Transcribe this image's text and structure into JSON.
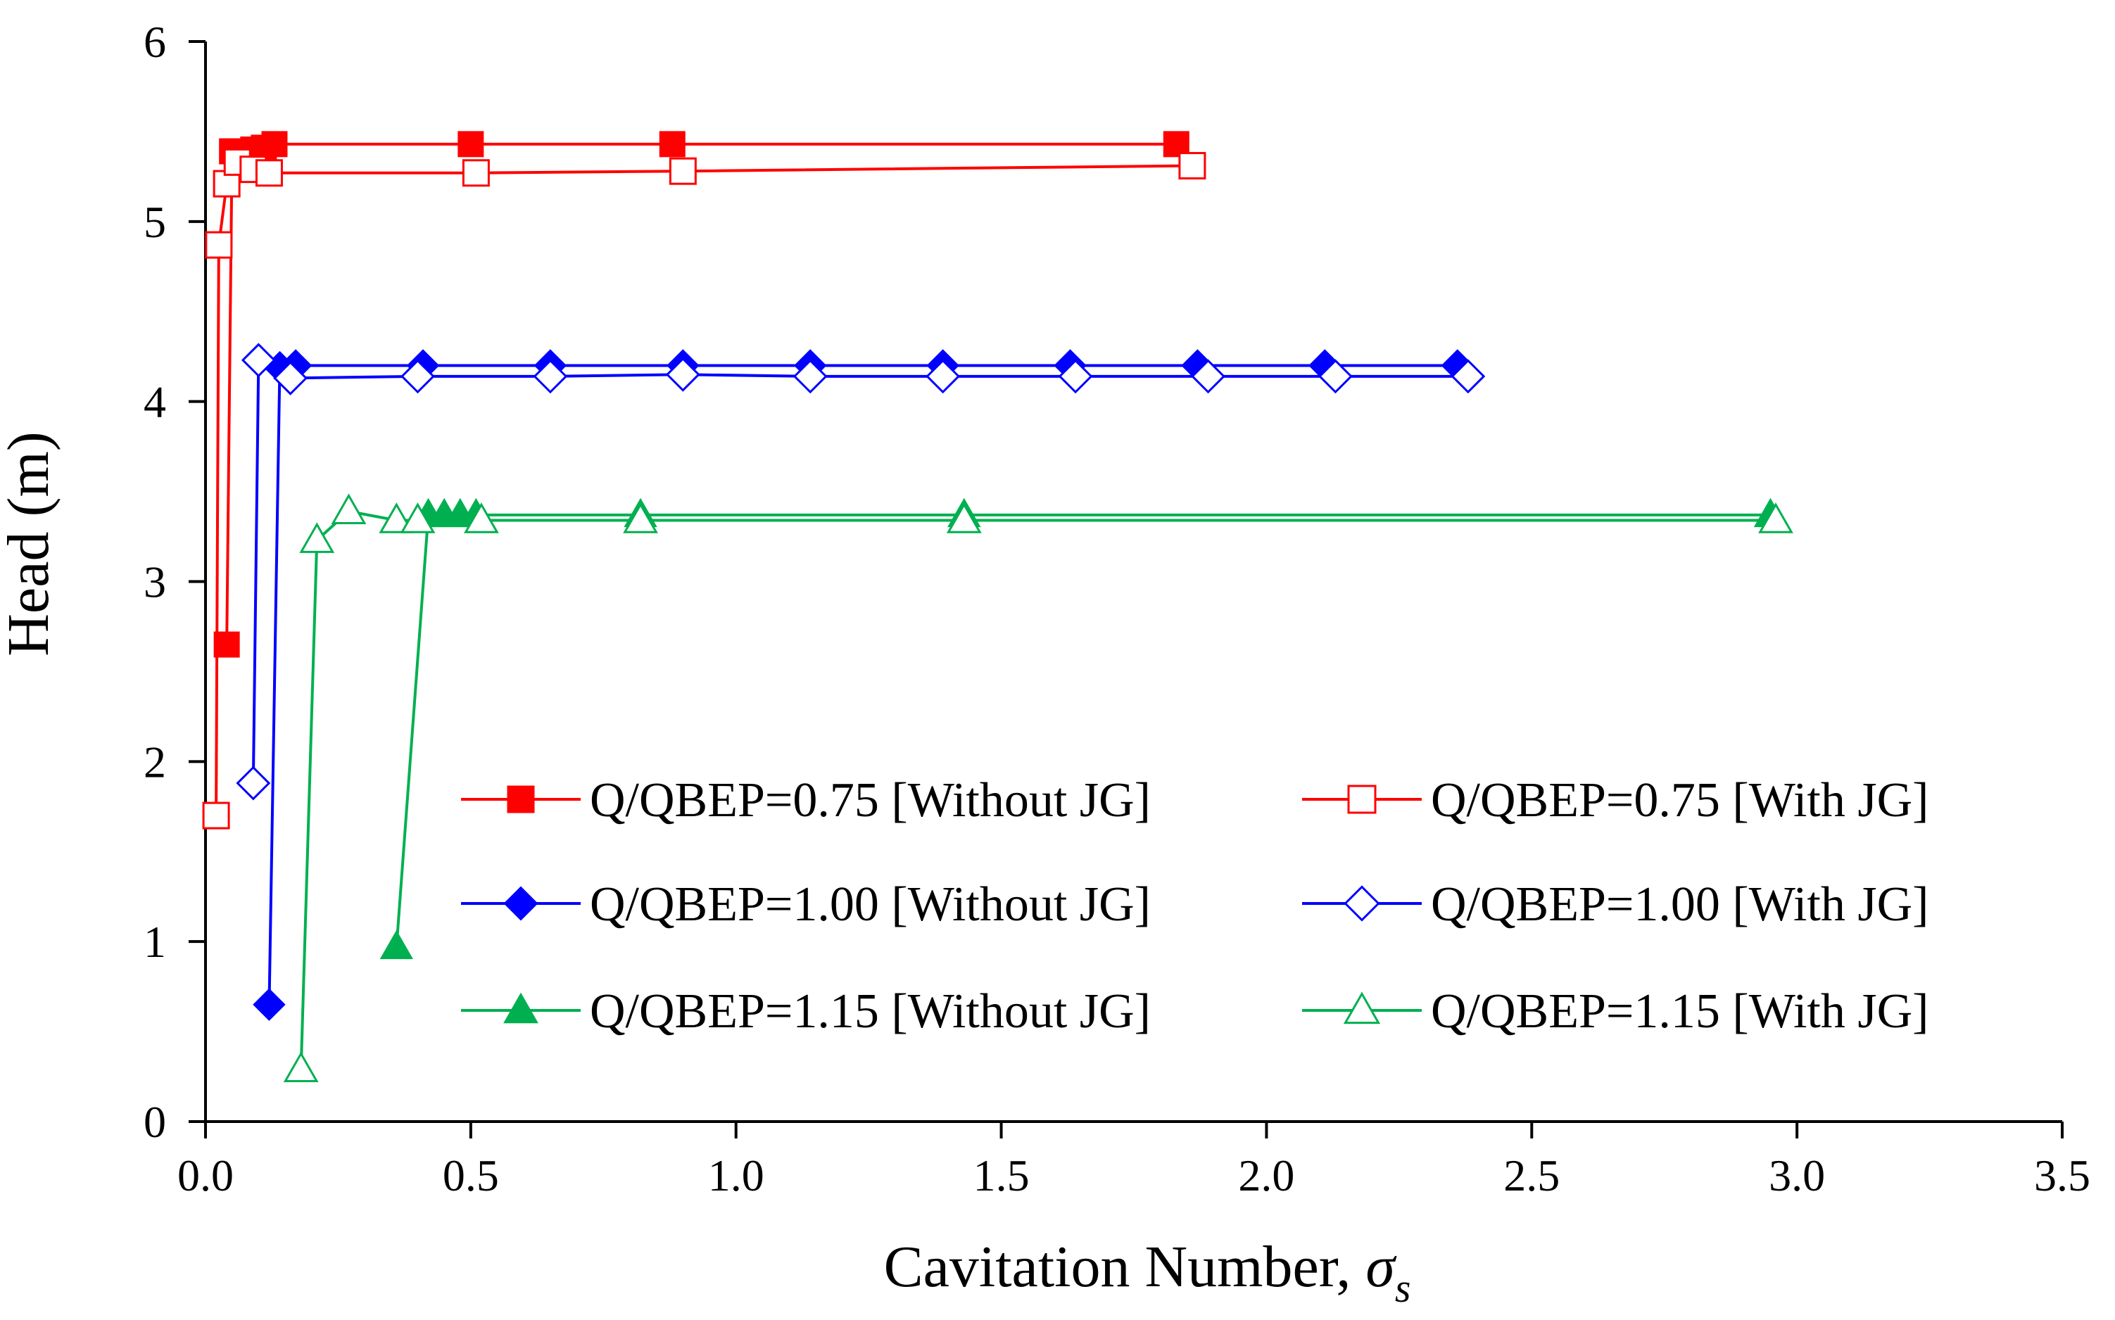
{
  "chart_data": {
    "type": "line",
    "title": "",
    "xlabel": "Cavitation Number, ",
    "xlabel_symbol": "σ",
    "xlabel_subscript": "s",
    "ylabel": "Head (m)",
    "xlim": [
      0.0,
      3.5
    ],
    "ylim": [
      0,
      6
    ],
    "xticks": [
      "0.0",
      "0.5",
      "1.0",
      "1.5",
      "2.0",
      "2.5",
      "3.0",
      "3.5"
    ],
    "yticks": [
      "0",
      "1",
      "2",
      "3",
      "4",
      "5",
      "6"
    ],
    "grid": false,
    "legend_position": "center-right",
    "series": [
      {
        "name": "Q/QBEP=0.75 [Without JG]",
        "color": "#ff0000",
        "marker": "square",
        "filled": true,
        "x": [
          0.04,
          0.05,
          0.07,
          0.09,
          0.11,
          0.13,
          0.5,
          0.88,
          1.83
        ],
        "y": [
          2.65,
          5.39,
          5.38,
          5.4,
          5.41,
          5.43,
          5.43,
          5.43,
          5.43
        ]
      },
      {
        "name": "Q/QBEP=0.75 [With JG]",
        "color": "#ff0000",
        "marker": "square",
        "filled": false,
        "x": [
          0.02,
          0.025,
          0.04,
          0.06,
          0.09,
          0.12,
          0.51,
          0.9,
          1.86
        ],
        "y": [
          1.7,
          4.87,
          5.21,
          5.33,
          5.29,
          5.27,
          5.27,
          5.28,
          5.31
        ]
      },
      {
        "name": "Q/QBEP=1.00 [Without JG]",
        "color": "#0000ff",
        "marker": "diamond",
        "filled": true,
        "x": [
          0.12,
          0.14,
          0.17,
          0.41,
          0.65,
          0.9,
          1.14,
          1.39,
          1.63,
          1.87,
          2.11,
          2.36
        ],
        "y": [
          0.65,
          4.19,
          4.2,
          4.2,
          4.2,
          4.2,
          4.2,
          4.2,
          4.2,
          4.2,
          4.2,
          4.2
        ]
      },
      {
        "name": "Q/QBEP=1.00 [With JG]",
        "color": "#0000ff",
        "marker": "diamond",
        "filled": false,
        "x": [
          0.09,
          0.1,
          0.16,
          0.4,
          0.65,
          0.9,
          1.14,
          1.39,
          1.64,
          1.89,
          2.13,
          2.38
        ],
        "y": [
          1.88,
          4.23,
          4.13,
          4.14,
          4.14,
          4.15,
          4.14,
          4.14,
          4.14,
          4.14,
          4.14,
          4.14
        ]
      },
      {
        "name": "Q/QBEP=1.15 [Without JG]",
        "color": "#00b050",
        "marker": "triangle",
        "filled": true,
        "x": [
          0.36,
          0.42,
          0.45,
          0.48,
          0.51,
          0.82,
          1.43,
          2.95
        ],
        "y": [
          0.97,
          3.37,
          3.37,
          3.37,
          3.37,
          3.37,
          3.37,
          3.37
        ]
      },
      {
        "name": "Q/QBEP=1.15 [With JG]",
        "color": "#00b050",
        "marker": "triangle",
        "filled": false,
        "x": [
          0.18,
          0.21,
          0.27,
          0.36,
          0.4,
          0.52,
          0.82,
          1.43,
          2.96
        ],
        "y": [
          0.29,
          3.23,
          3.39,
          3.34,
          3.34,
          3.34,
          3.34,
          3.34,
          3.34
        ]
      }
    ]
  }
}
